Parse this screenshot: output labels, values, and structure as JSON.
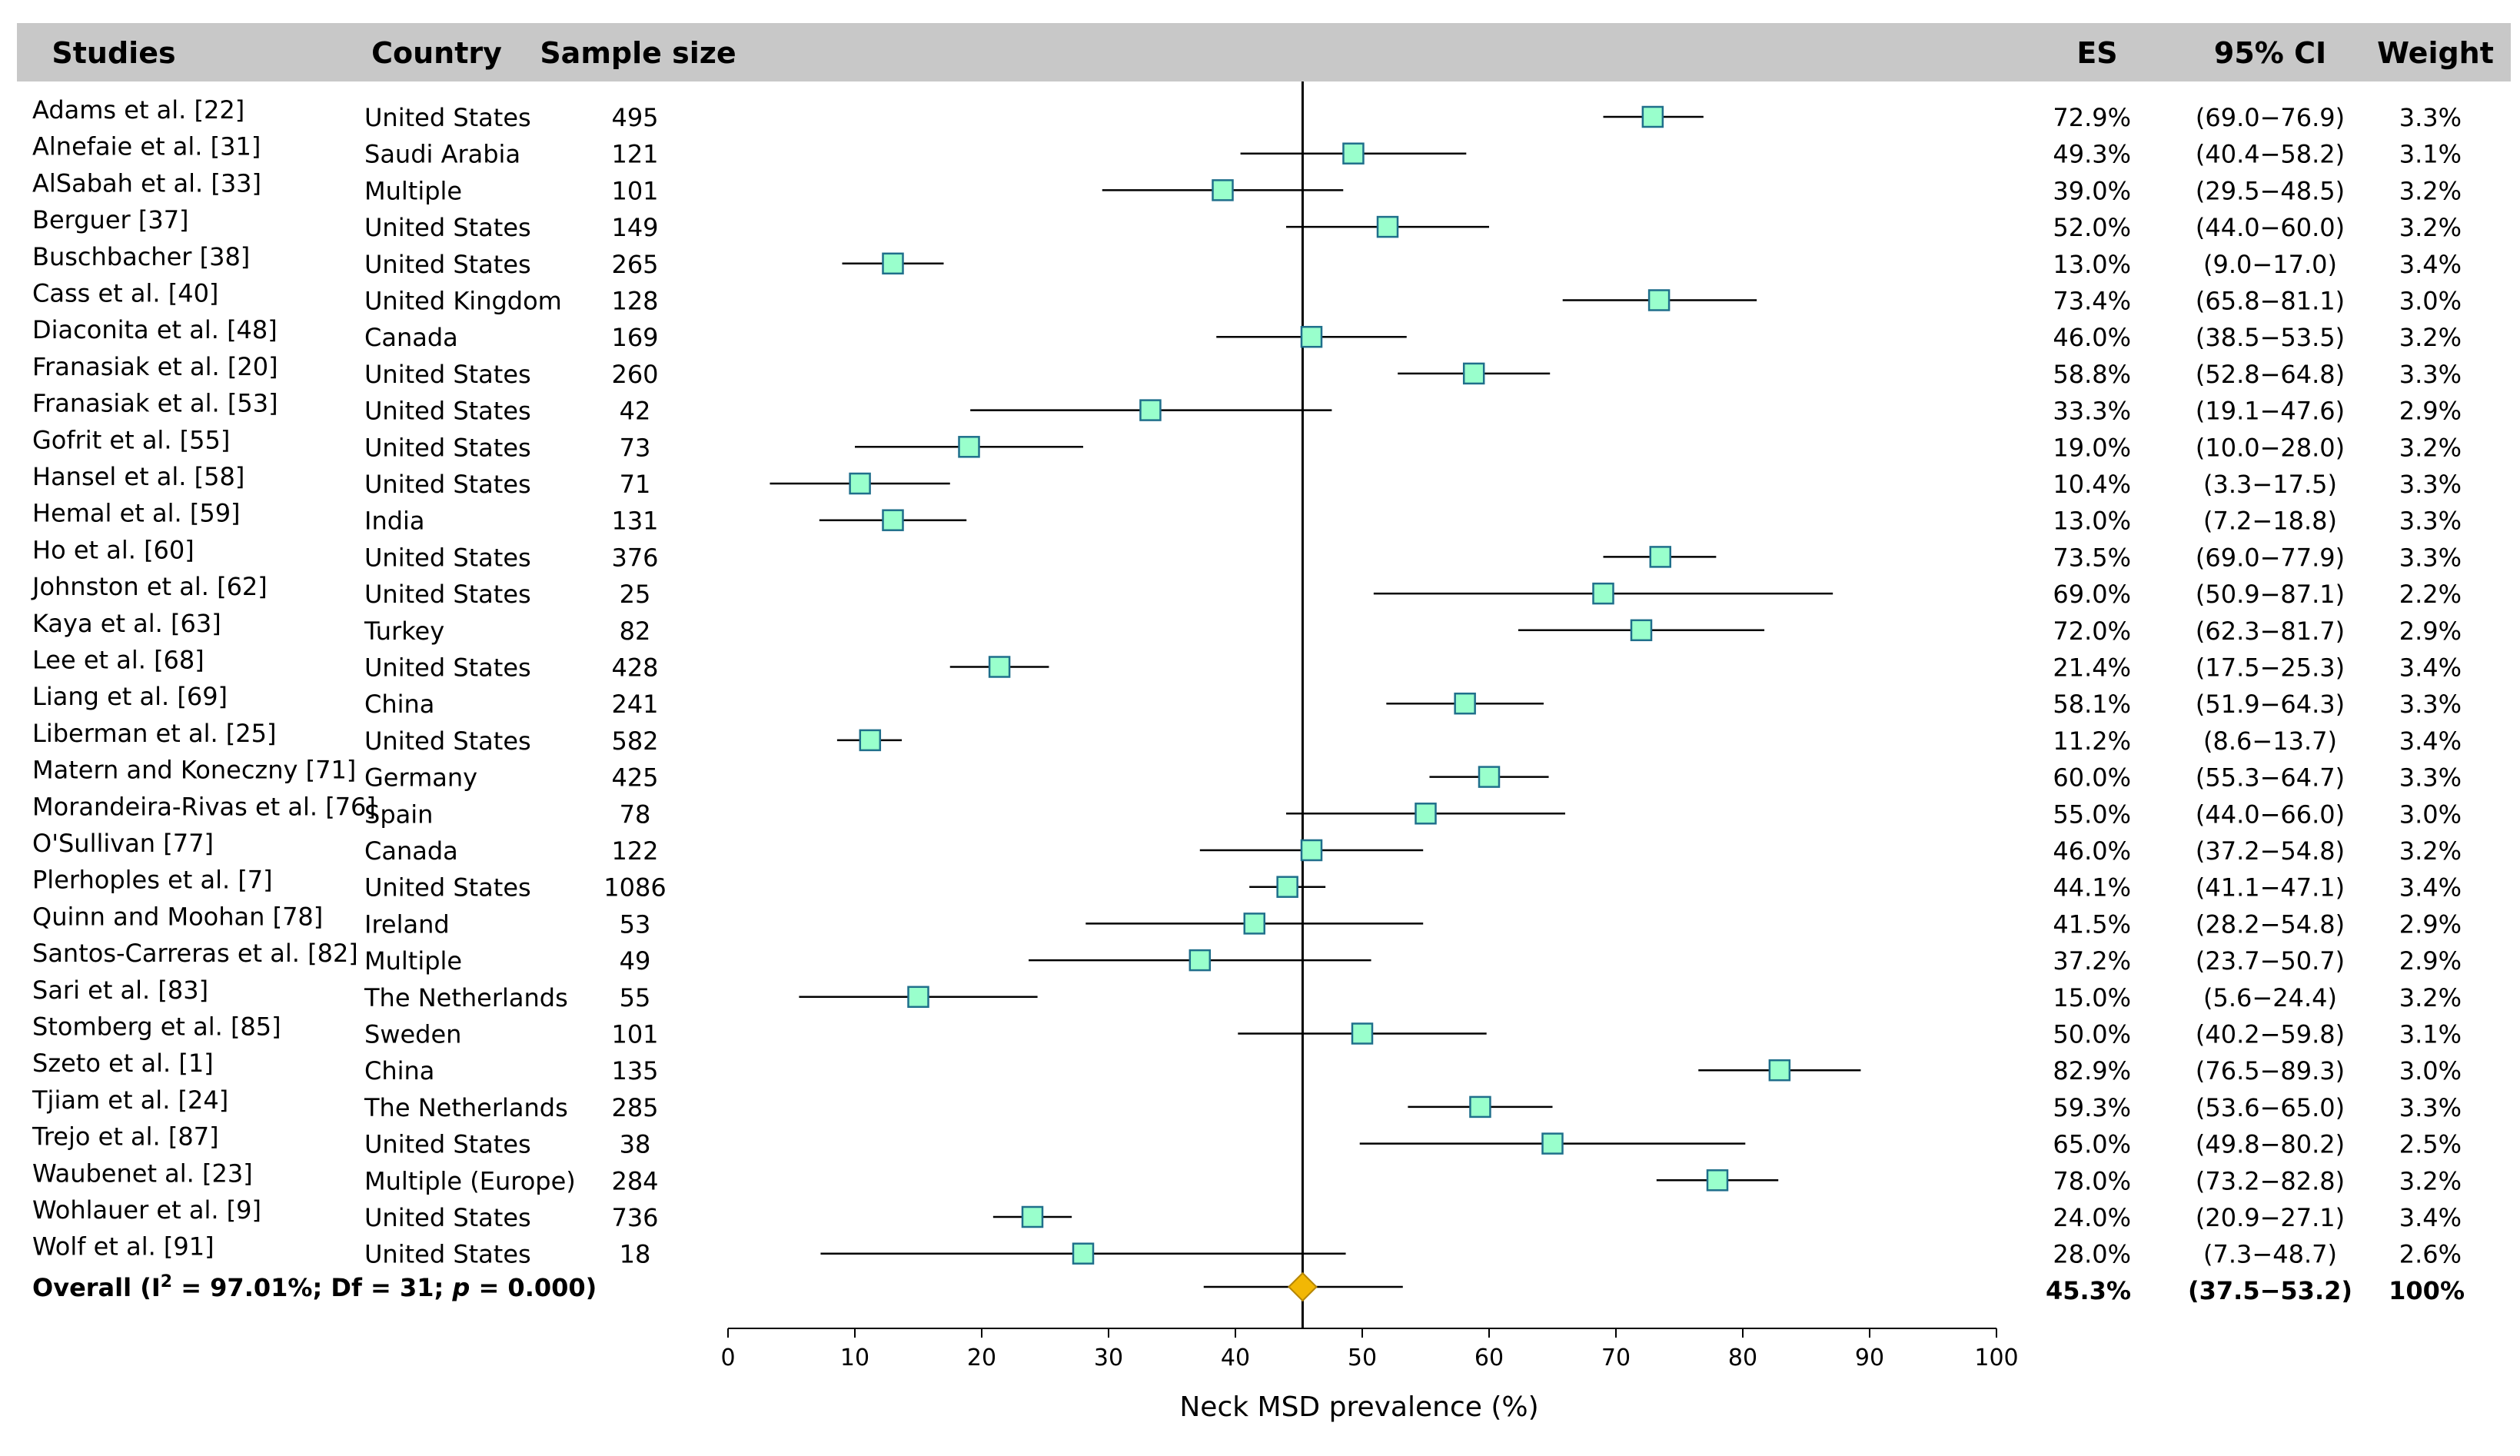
{
  "chart_data": {
    "type": "forest",
    "headers": {
      "studies": "Studies",
      "country": "Country",
      "sample_size": "Sample size",
      "es": "ES",
      "ci": "95% CI",
      "weight": "Weight"
    },
    "xlabel": "Neck MSD prevalence (%)",
    "xlim": [
      0,
      100
    ],
    "xticks": [
      0,
      10,
      20,
      30,
      40,
      50,
      60,
      70,
      80,
      90,
      100
    ],
    "reference_line": 45.3,
    "studies": [
      {
        "label": "Adams et al. [22]",
        "country": "United States",
        "n": "495",
        "es": 72.9,
        "lo": 69.0,
        "hi": 76.9,
        "es_text": "72.9%",
        "ci_text": "(69.0−76.9)",
        "weight": "3.3%"
      },
      {
        "label": "Alnefaie et al. [31]",
        "country": "Saudi Arabia",
        "n": "121",
        "es": 49.3,
        "lo": 40.4,
        "hi": 58.2,
        "es_text": "49.3%",
        "ci_text": "(40.4−58.2)",
        "weight": "3.1%"
      },
      {
        "label": "AlSabah et al. [33]",
        "country": "Multiple",
        "n": "101",
        "es": 39.0,
        "lo": 29.5,
        "hi": 48.5,
        "es_text": "39.0%",
        "ci_text": "(29.5−48.5)",
        "weight": "3.2%"
      },
      {
        "label": "Berguer [37]",
        "country": "United States",
        "n": "149",
        "es": 52.0,
        "lo": 44.0,
        "hi": 60.0,
        "es_text": "52.0%",
        "ci_text": "(44.0−60.0)",
        "weight": "3.2%"
      },
      {
        "label": "Buschbacher [38]",
        "country": "United States",
        "n": "265",
        "es": 13.0,
        "lo": 9.0,
        "hi": 17.0,
        "es_text": "13.0%",
        "ci_text": "(9.0−17.0)",
        "weight": "3.4%"
      },
      {
        "label": "Cass et al. [40]",
        "country": "United Kingdom",
        "n": "128",
        "es": 73.4,
        "lo": 65.8,
        "hi": 81.1,
        "es_text": "73.4%",
        "ci_text": "(65.8−81.1)",
        "weight": "3.0%"
      },
      {
        "label": "Diaconita et al. [48]",
        "country": "Canada",
        "n": "169",
        "es": 46.0,
        "lo": 38.5,
        "hi": 53.5,
        "es_text": "46.0%",
        "ci_text": "(38.5−53.5)",
        "weight": "3.2%"
      },
      {
        "label": "Franasiak et al. [20]",
        "country": "United States",
        "n": "260",
        "es": 58.8,
        "lo": 52.8,
        "hi": 64.8,
        "es_text": "58.8%",
        "ci_text": "(52.8−64.8)",
        "weight": "3.3%"
      },
      {
        "label": "Franasiak et al. [53]",
        "country": "United States",
        "n": "42",
        "es": 33.3,
        "lo": 19.1,
        "hi": 47.6,
        "es_text": "33.3%",
        "ci_text": "(19.1−47.6)",
        "weight": "2.9%"
      },
      {
        "label": "Gofrit et al. [55]",
        "country": "United States",
        "n": "73",
        "es": 19.0,
        "lo": 10.0,
        "hi": 28.0,
        "es_text": "19.0%",
        "ci_text": "(10.0−28.0)",
        "weight": "3.2%"
      },
      {
        "label": "Hansel et al. [58]",
        "country": "United States",
        "n": "71",
        "es": 10.4,
        "lo": 3.3,
        "hi": 17.5,
        "es_text": "10.4%",
        "ci_text": "(3.3−17.5)",
        "weight": "3.3%"
      },
      {
        "label": "Hemal et al. [59]",
        "country": "India",
        "n": "131",
        "es": 13.0,
        "lo": 7.2,
        "hi": 18.8,
        "es_text": "13.0%",
        "ci_text": "(7.2−18.8)",
        "weight": "3.3%"
      },
      {
        "label": "Ho et al. [60]",
        "country": "United States",
        "n": "376",
        "es": 73.5,
        "lo": 69.0,
        "hi": 77.9,
        "es_text": "73.5%",
        "ci_text": "(69.0−77.9)",
        "weight": "3.3%"
      },
      {
        "label": "Johnston et al. [62]",
        "country": "United States",
        "n": "25",
        "es": 69.0,
        "lo": 50.9,
        "hi": 87.1,
        "es_text": "69.0%",
        "ci_text": "(50.9−87.1)",
        "weight": "2.2%"
      },
      {
        "label": "Kaya et al. [63]",
        "country": "Turkey",
        "n": "82",
        "es": 72.0,
        "lo": 62.3,
        "hi": 81.7,
        "es_text": "72.0%",
        "ci_text": "(62.3−81.7)",
        "weight": "2.9%"
      },
      {
        "label": "Lee et al. [68]",
        "country": "United States",
        "n": "428",
        "es": 21.4,
        "lo": 17.5,
        "hi": 25.3,
        "es_text": "21.4%",
        "ci_text": "(17.5−25.3)",
        "weight": "3.4%"
      },
      {
        "label": "Liang et al. [69]",
        "country": "China",
        "n": "241",
        "es": 58.1,
        "lo": 51.9,
        "hi": 64.3,
        "es_text": "58.1%",
        "ci_text": "(51.9−64.3)",
        "weight": "3.3%"
      },
      {
        "label": "Liberman et al. [25]",
        "country": "United States",
        "n": "582",
        "es": 11.2,
        "lo": 8.6,
        "hi": 13.7,
        "es_text": "11.2%",
        "ci_text": "(8.6−13.7)",
        "weight": "3.4%"
      },
      {
        "label": "Matern and Koneczny [71]",
        "country": "Germany",
        "n": "425",
        "es": 60.0,
        "lo": 55.3,
        "hi": 64.7,
        "es_text": "60.0%",
        "ci_text": "(55.3−64.7)",
        "weight": "3.3%"
      },
      {
        "label": "Morandeira-Rivas et al. [76]",
        "country": "Spain",
        "n": "78",
        "es": 55.0,
        "lo": 44.0,
        "hi": 66.0,
        "es_text": "55.0%",
        "ci_text": "(44.0−66.0)",
        "weight": "3.0%"
      },
      {
        "label": "O'Sullivan [77]",
        "country": "Canada",
        "n": "122",
        "es": 46.0,
        "lo": 37.2,
        "hi": 54.8,
        "es_text": "46.0%",
        "ci_text": "(37.2−54.8)",
        "weight": "3.2%"
      },
      {
        "label": "Plerhoples et al. [7]",
        "country": "United States",
        "n": "1086",
        "es": 44.1,
        "lo": 41.1,
        "hi": 47.1,
        "es_text": "44.1%",
        "ci_text": "(41.1−47.1)",
        "weight": "3.4%"
      },
      {
        "label": "Quinn and Moohan [78]",
        "country": "Ireland",
        "n": "53",
        "es": 41.5,
        "lo": 28.2,
        "hi": 54.8,
        "es_text": "41.5%",
        "ci_text": "(28.2−54.8)",
        "weight": "2.9%"
      },
      {
        "label": "Santos-Carreras et al. [82]",
        "country": "Multiple",
        "n": "49",
        "es": 37.2,
        "lo": 23.7,
        "hi": 50.7,
        "es_text": "37.2%",
        "ci_text": "(23.7−50.7)",
        "weight": "2.9%"
      },
      {
        "label": "Sari et al. [83]",
        "country": "The Netherlands",
        "n": "55",
        "es": 15.0,
        "lo": 5.6,
        "hi": 24.4,
        "es_text": "15.0%",
        "ci_text": "(5.6−24.4)",
        "weight": "3.2%"
      },
      {
        "label": "Stomberg et al. [85]",
        "country": "Sweden",
        "n": "101",
        "es": 50.0,
        "lo": 40.2,
        "hi": 59.8,
        "es_text": "50.0%",
        "ci_text": "(40.2−59.8)",
        "weight": "3.1%"
      },
      {
        "label": "Szeto et al. [1]",
        "country": "China",
        "n": "135",
        "es": 82.9,
        "lo": 76.5,
        "hi": 89.3,
        "es_text": "82.9%",
        "ci_text": "(76.5−89.3)",
        "weight": "3.0%"
      },
      {
        "label": "Tjiam et al. [24]",
        "country": "The Netherlands",
        "n": "285",
        "es": 59.3,
        "lo": 53.6,
        "hi": 65.0,
        "es_text": "59.3%",
        "ci_text": "(53.6−65.0)",
        "weight": "3.3%"
      },
      {
        "label": "Trejo et al. [87]",
        "country": "United States",
        "n": "38",
        "es": 65.0,
        "lo": 49.8,
        "hi": 80.2,
        "es_text": "65.0%",
        "ci_text": "(49.8−80.2)",
        "weight": "2.5%"
      },
      {
        "label": "Waubenet al. [23]",
        "country": "Multiple (Europe)",
        "n": "284",
        "es": 78.0,
        "lo": 73.2,
        "hi": 82.8,
        "es_text": "78.0%",
        "ci_text": "(73.2−82.8)",
        "weight": "3.2%"
      },
      {
        "label": "Wohlauer et al. [9]",
        "country": "United States",
        "n": "736",
        "es": 24.0,
        "lo": 20.9,
        "hi": 27.1,
        "es_text": "24.0%",
        "ci_text": "(20.9−27.1)",
        "weight": "3.4%"
      },
      {
        "label": "Wolf et al. [91]",
        "country": "United States",
        "n": "18",
        "es": 28.0,
        "lo": 7.3,
        "hi": 48.7,
        "es_text": "28.0%",
        "ci_text": "(7.3−48.7)",
        "weight": "2.6%"
      }
    ],
    "overall": {
      "label_prefix": "Overall (I",
      "label_sup": "2",
      "label_mid": " = 97.01%; Df = 31; ",
      "label_p": "p",
      "label_end": " = 0.000)",
      "es": 45.3,
      "lo": 37.5,
      "hi": 53.2,
      "es_text": "45.3%",
      "ci_text": "(37.5−53.2)",
      "weight": "100%"
    },
    "colors": {
      "header_bg": "#c8c8c8",
      "marker_fill": "#99ffcc",
      "marker_stroke": "#1f6f8b",
      "diamond_fill": "#f2b705",
      "diamond_stroke": "#b58500",
      "line": "#000000"
    }
  }
}
